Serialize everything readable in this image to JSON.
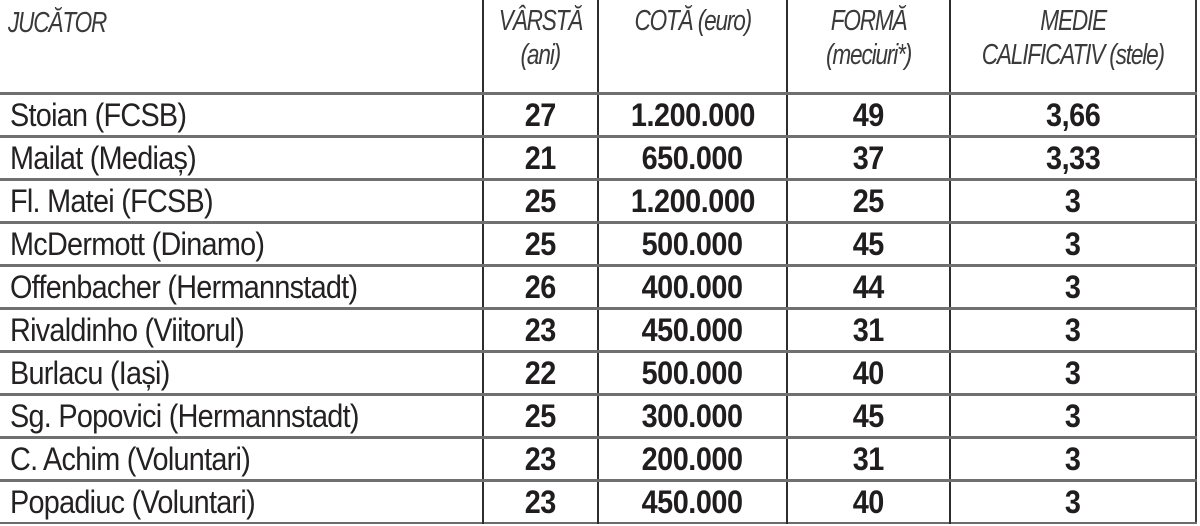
{
  "table": {
    "headers": {
      "player": {
        "line1": "JUCĂTOR"
      },
      "age": {
        "line1": "VÂRSTĂ",
        "line2": "(ani)"
      },
      "value": {
        "line1": "COTĂ (euro)"
      },
      "form": {
        "line1": "FORMĂ",
        "line2": "(meciuri*)"
      },
      "rating": {
        "line1": "MEDIE",
        "line2": "CALIFICATIV (stele)"
      }
    },
    "rows": [
      {
        "player": "Stoian (FCSB)",
        "age": "27",
        "value": "1.200.000",
        "form": "49",
        "rating": "3,66"
      },
      {
        "player": "Mailat (Mediaș)",
        "age": "21",
        "value": "650.000",
        "form": "37",
        "rating": "3,33"
      },
      {
        "player": "Fl. Matei (FCSB)",
        "age": "25",
        "value": "1.200.000",
        "form": "25",
        "rating": "3"
      },
      {
        "player": "McDermott (Dinamo)",
        "age": "25",
        "value": "500.000",
        "form": "45",
        "rating": "3"
      },
      {
        "player": "Offenbacher (Hermannstadt)",
        "age": "26",
        "value": "400.000",
        "form": "44",
        "rating": "3"
      },
      {
        "player": "Rivaldinho (Viitorul)",
        "age": "23",
        "value": "450.000",
        "form": "31",
        "rating": "3"
      },
      {
        "player": "Burlacu (Iași)",
        "age": "22",
        "value": "500.000",
        "form": "40",
        "rating": "3"
      },
      {
        "player": "Sg. Popovici (Hermannstadt)",
        "age": "25",
        "value": "300.000",
        "form": "45",
        "rating": "3"
      },
      {
        "player": "C. Achim (Voluntari)",
        "age": "23",
        "value": "200.000",
        "form": "31",
        "rating": "3"
      },
      {
        "player": "Popadiuc (Voluntari)",
        "age": "23",
        "value": "450.000",
        "form": "40",
        "rating": "3"
      }
    ]
  },
  "colors": {
    "text": "#1e1c1d",
    "header_text": "#3b3a3a",
    "row_rule": "#707070",
    "column_rule": "#2d2d2d",
    "background": "#ffffff"
  }
}
